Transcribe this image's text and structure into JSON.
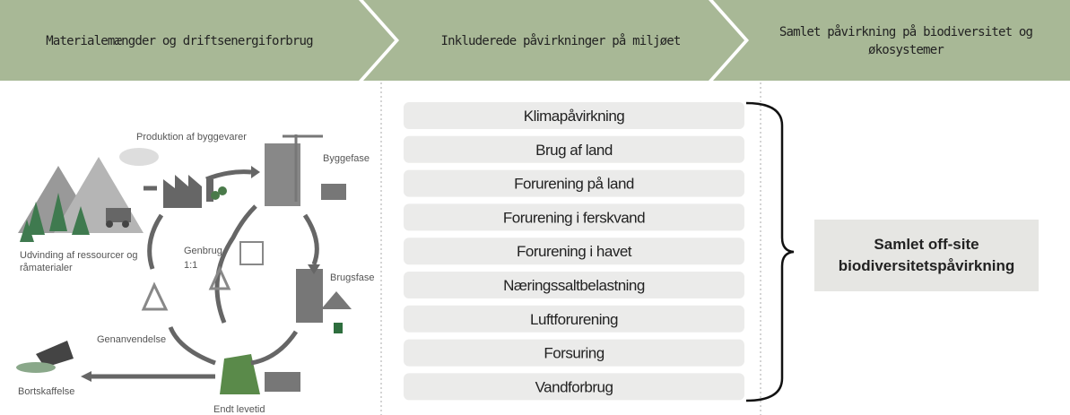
{
  "header": {
    "steps": [
      "Materialemængder og driftsenergiforbrug",
      "Inkluderede påvirkninger på miljøet",
      [
        "Samlet påvirkning på biodiversitet og",
        "økosystemer"
      ]
    ]
  },
  "lifecycle": {
    "production": "Produktion af byggevarer",
    "construction": "Byggefase",
    "extraction": [
      "Udvinding af ressourcer og",
      "råmaterialer"
    ],
    "reuse": [
      "Genbrug",
      "1:1"
    ],
    "use": "Brugsfase",
    "recycling": "Genanvendelse",
    "disposal": "Bortskaffelse",
    "end_of_life": "Endt levetid"
  },
  "impacts": [
    "Klimapåvirkning",
    "Brug af land",
    "Forurening på land",
    "Forurening i ferskvand",
    "Forurening i havet",
    "Næringssaltbelastning",
    "Luftforurening",
    "Forsuring",
    "Vandforbrug"
  ],
  "result": [
    "Samlet off-site",
    "biodiversitetspåvirkning"
  ]
}
